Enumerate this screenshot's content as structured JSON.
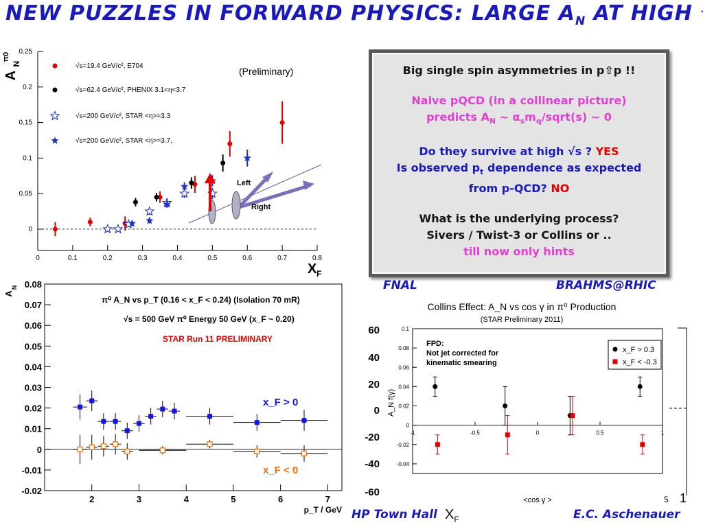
{
  "slide": {
    "title_main": "NEW PUZZLES IN FORWARD PHYSICS: LARGE A",
    "title_sub": "N",
    "title_tail": " AT HIGH √s",
    "footer_left": "HP Town Hall",
    "footer_xf": "X",
    "footer_xf_sub": "F",
    "footer_right": "E.C. Aschenauer",
    "label_fnal": "FNAL",
    "label_brahms": "BRAHMS@RHIC",
    "colors": {
      "title": "#1a1ab8",
      "pink": "#e040d0",
      "red": "#e00000",
      "box_bg": "#e4e4e4"
    }
  },
  "box": {
    "line1": "Big single spin asymmetries in p⇧p !!",
    "line2": "Naive pQCD (in a collinear picture)",
    "line3": "predicts A",
    "line3_sub": "N",
    "line3_rest": " ~ α",
    "line3_sub2": "s",
    "line3_rest2": "m",
    "line3_sub3": "q",
    "line3_rest3": "/sqrt(s) ~ 0",
    "line4": "Do they survive at high √s ? ",
    "line4_ans": "YES",
    "line5": "Is observed p",
    "line5_sub": "t",
    "line5_rest": " dependence as expected",
    "line6": "from p-QCD? ",
    "line6_ans": "NO",
    "line7": "What is the underlying process?",
    "line8": "Sivers / Twist-3 or Collins or ..",
    "line9": "till now only hints"
  },
  "chart_data": [
    {
      "type": "scatter",
      "ylabel": "A",
      "ylabel_sup": "π0",
      "ylabel_sub": "N",
      "xlabel": "X",
      "xlabel_sub": "F",
      "xlim": [
        0,
        0.8
      ],
      "ylim": [
        -0.03,
        0.25
      ],
      "x_ticks": [
        "0",
        "0.1",
        "0.2",
        "0.3",
        "0.4",
        "0.5",
        "0.6",
        "0.7",
        "0.8"
      ],
      "y_ticks": [
        "0",
        "0.05",
        "0.1",
        "0.15",
        "0.2",
        "0.25"
      ],
      "annotation": "(Preliminary)",
      "arrow_left_label": "Left",
      "arrow_right_label": "Right",
      "legend": [
        {
          "text": "√s=19.4 GeV/c², E704",
          "marker": "red-dot"
        },
        {
          "text": "√s=62.4 GeV/c², PHENIX 3.1<η<3.7",
          "marker": "black-dot"
        },
        {
          "text": "√s=200 GeV/c², STAR <η>=3.3",
          "marker": "blue-open-star"
        },
        {
          "text": "√s=200 GeV/c², STAR <η>=3.7,",
          "marker": "blue-star"
        }
      ],
      "series": [
        {
          "name": "√s=19.4 GeV/c², E704",
          "color": "#e00000",
          "marker": "dot",
          "points": [
            [
              0.05,
              0.0,
              0.01
            ],
            [
              0.15,
              0.01,
              0.006
            ],
            [
              0.25,
              0.008,
              0.01
            ],
            [
              0.35,
              0.045,
              0.008
            ],
            [
              0.45,
              0.063,
              0.012
            ],
            [
              0.55,
              0.12,
              0.018
            ],
            [
              0.7,
              0.15,
              0.03
            ]
          ]
        },
        {
          "name": "√s=62.4 GeV/c², PHENIX 3.1<η<3.7",
          "color": "#000000",
          "marker": "dot",
          "points": [
            [
              0.28,
              0.038,
              0.006
            ],
            [
              0.34,
              0.045,
              0.006
            ],
            [
              0.44,
              0.065,
              0.008
            ],
            [
              0.53,
              0.093,
              0.012
            ]
          ]
        },
        {
          "name": "√s=200 GeV/c², STAR <η>=3.3",
          "color": "#2030c0",
          "marker": "openstar",
          "points": [
            [
              0.2,
              0.0,
              0.004
            ],
            [
              0.23,
              0.0,
              0.004
            ],
            [
              0.26,
              0.007,
              0.004
            ],
            [
              0.32,
              0.025,
              0.005
            ],
            [
              0.37,
              0.037,
              0.006
            ],
            [
              0.42,
              0.05,
              0.006
            ],
            [
              0.5,
              0.05,
              0.008
            ]
          ]
        },
        {
          "name": "√s=200 GeV/c², STAR <η>=3.7,",
          "color": "#2030c0",
          "marker": "star",
          "points": [
            [
              0.27,
              0.008,
              0.004
            ],
            [
              0.32,
              0.012,
              0.004
            ],
            [
              0.37,
              0.035,
              0.005
            ],
            [
              0.42,
              0.06,
              0.006
            ],
            [
              0.5,
              0.068,
              0.008
            ],
            [
              0.6,
              0.1,
              0.012
            ]
          ]
        }
      ]
    },
    {
      "type": "scatter",
      "title": "π⁰ A_N vs p_T (0.16 < x_F < 0.24)   (Isolation 70 mR)",
      "title2": "√s = 500 GeV π⁰ Energy 50 GeV (x_F ~ 0.20)",
      "subtitle": "STAR Run 11 PRELIMINARY",
      "ylabel": "A",
      "ylabel_sub": "N",
      "xlabel": "p_T / GeV",
      "xlim": [
        1,
        7.3
      ],
      "ylim": [
        -0.02,
        0.08
      ],
      "x_ticks": [
        "2",
        "3",
        "4",
        "5",
        "6",
        "7"
      ],
      "y_ticks": [
        "-0.02",
        "-0.01",
        "0",
        "0.01",
        "0.02",
        "0.03",
        "0.04",
        "0.05",
        "0.06",
        "0.07",
        "0.08"
      ],
      "series": [
        {
          "name": "x_F > 0",
          "color": "#1515e0",
          "marker": "square",
          "points": [
            [
              1.75,
              0.0205,
              0.15,
              0.006
            ],
            [
              2.0,
              0.0235,
              0.12,
              0.005
            ],
            [
              2.25,
              0.0135,
              0.12,
              0.004
            ],
            [
              2.5,
              0.0135,
              0.12,
              0.004
            ],
            [
              2.75,
              0.009,
              0.12,
              0.004
            ],
            [
              3.0,
              0.0125,
              0.12,
              0.004
            ],
            [
              3.25,
              0.016,
              0.12,
              0.004
            ],
            [
              3.5,
              0.0195,
              0.12,
              0.004
            ],
            [
              3.75,
              0.0185,
              0.12,
              0.004
            ],
            [
              4.5,
              0.016,
              0.5,
              0.004
            ],
            [
              5.5,
              0.013,
              0.5,
              0.004
            ],
            [
              6.5,
              0.014,
              0.5,
              0.005
            ]
          ]
        },
        {
          "name": "x_F < 0",
          "color": "#f07010",
          "marker": "opensquare",
          "points": [
            [
              1.75,
              0.0,
              0.15,
              0.007
            ],
            [
              2.0,
              0.001,
              0.12,
              0.006
            ],
            [
              2.25,
              0.0015,
              0.12,
              0.005
            ],
            [
              2.5,
              0.0025,
              0.12,
              0.005
            ],
            [
              2.75,
              -0.001,
              0.12,
              0.004
            ],
            [
              3.5,
              -0.0005,
              0.5,
              0.002
            ],
            [
              4.5,
              0.0025,
              0.5,
              0.002
            ],
            [
              5.5,
              -0.001,
              0.5,
              0.003
            ],
            [
              6.5,
              -0.002,
              0.5,
              0.004
            ]
          ]
        }
      ]
    },
    {
      "type": "scatter",
      "title": "Collins Effect: A_N vs cos γ in π⁰ Production",
      "subtitle": "(STAR Preliminary 2011)",
      "annotation": [
        "FPD:",
        "Not jet corrected for",
        "kinematic smearing"
      ],
      "ylabel": "A_N f(γ)",
      "xlabel": "<cos γ >",
      "xlim": [
        -1,
        1
      ],
      "ylim": [
        -0.05,
        0.1
      ],
      "x_ticks": [
        "-1",
        "-0.5",
        "0",
        "0.5",
        "1"
      ],
      "y_ticks": [
        "-0.04",
        "-0.02",
        "0",
        "0.02",
        "0.04",
        "0.06",
        "0.08",
        "0.1"
      ],
      "series": [
        {
          "name": "x_F > 0.3",
          "color": "#000000",
          "marker": "dot",
          "points": [
            [
              -0.82,
              0.04,
              0.01
            ],
            [
              -0.26,
              0.02,
              0.02
            ],
            [
              0.26,
              0.01,
              0.02
            ],
            [
              0.82,
              0.04,
              0.01
            ]
          ]
        },
        {
          "name": "x_F < -0.3",
          "color": "#e00000",
          "marker": "square",
          "points": [
            [
              -0.8,
              -0.02,
              0.01
            ],
            [
              -0.24,
              -0.01,
              0.02
            ],
            [
              0.28,
              0.01,
              0.02
            ],
            [
              0.84,
              -0.02,
              0.01
            ]
          ]
        }
      ]
    }
  ],
  "behind": {
    "left_ticks": [
      "60",
      "40",
      "20",
      "0",
      "-20",
      "-40",
      "-60"
    ],
    "right_tick": "1",
    "right_tick2": "5",
    "xf_left": "X",
    "xf_left_sub": "F",
    "xf_mid": "X",
    "xf_mid_sub": "F"
  }
}
